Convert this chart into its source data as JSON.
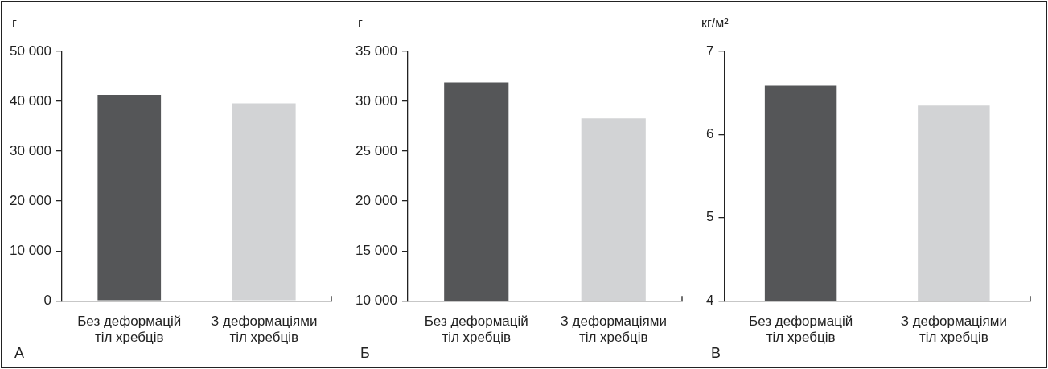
{
  "chart_data": [
    {
      "type": "bar",
      "ylabel": "г",
      "categories": [
        "Без деформацій тіл хребців",
        "З деформаціями тіл хребців"
      ],
      "values": [
        41300,
        39600
      ],
      "colors": [
        "#555658",
        "#d2d3d5"
      ],
      "ylim": [
        0,
        50000
      ],
      "yticks": [
        0,
        {
          "value": 10000,
          "label": "10 000"
        },
        {
          "value": 20000,
          "label": "20 000"
        },
        {
          "value": 30000,
          "label": "30 000"
        },
        {
          "value": 40000,
          "label": "40 000"
        },
        {
          "value": 50000,
          "label": "50 000"
        }
      ],
      "grid": false,
      "annotations": [
        "А"
      ]
    },
    {
      "type": "bar",
      "ylabel": "г",
      "categories": [
        "Без деформацій тіл хребців",
        "З деформаціями тіл хребців"
      ],
      "values": [
        31900,
        28300
      ],
      "colors": [
        "#555658",
        "#d2d3d5"
      ],
      "ylim": [
        10000,
        35000
      ],
      "yticks": [
        {
          "value": 10000,
          "label": "10 000"
        },
        {
          "value": 15000,
          "label": "15 000"
        },
        {
          "value": 20000,
          "label": "20 000"
        },
        {
          "value": 25000,
          "label": "25 000"
        },
        {
          "value": 30000,
          "label": "30 000"
        },
        {
          "value": 35000,
          "label": "35 000"
        }
      ],
      "grid": false,
      "annotations": [
        "Б"
      ]
    },
    {
      "type": "bar",
      "ylabel": "кг/м²",
      "categories": [
        "Без деформацій тіл хребців",
        "З деформаціями тіл хребців"
      ],
      "values": [
        6.59,
        6.35
      ],
      "colors": [
        "#555658",
        "#d2d3d5"
      ],
      "ylim": [
        4,
        7
      ],
      "yticks": [
        4,
        5,
        6,
        7
      ],
      "grid": false,
      "annotations": [
        "В"
      ]
    }
  ]
}
